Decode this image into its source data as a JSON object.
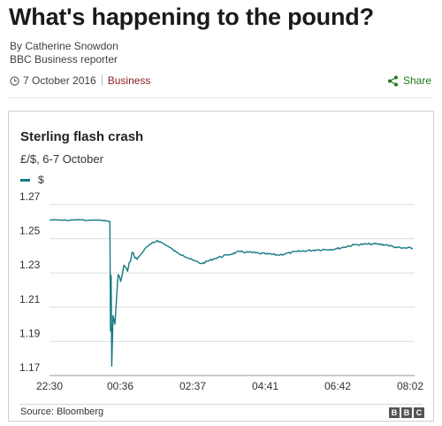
{
  "article": {
    "headline": "What's happening to the pound?",
    "author": "By Catherine Snowdon",
    "author_role": "BBC Business reporter",
    "date": "7 October 2016",
    "section": "Business",
    "share_label": "Share"
  },
  "chart_panel": {
    "title": "Sterling flash crash",
    "subtitle": "£/$, 6-7 October",
    "legend_label": "$",
    "source": "Source: Bloomberg",
    "logo_letters": [
      "B",
      "B",
      "C"
    ]
  },
  "colors": {
    "series": "#157a82",
    "section_tag": "#8a1f1f",
    "share": "#1a7a1a"
  },
  "icons": {
    "date": "clock-icon",
    "share": "share-icon"
  },
  "chart_data": {
    "type": "line",
    "title": "Sterling flash crash",
    "subtitle": "£/$, 6-7 October",
    "xlabel": "",
    "ylabel": "",
    "ylim": [
      1.17,
      1.27
    ],
    "yticks": [
      1.27,
      1.25,
      1.23,
      1.21,
      1.19,
      1.17
    ],
    "x_ticks": [
      "22:30",
      "00:36",
      "02:37",
      "04:41",
      "06:42",
      "08:02"
    ],
    "grid": true,
    "legend": "top-left",
    "series": [
      {
        "name": "$",
        "points": [
          [
            "22:30",
            1.261
          ],
          [
            "22:45",
            1.261
          ],
          [
            "23:00",
            1.2608
          ],
          [
            "23:15",
            1.2612
          ],
          [
            "23:30",
            1.2608
          ],
          [
            "23:45",
            1.261
          ],
          [
            "24:00",
            1.2605
          ],
          [
            "24:05",
            1.2602
          ],
          [
            "24:06",
            1.196
          ],
          [
            "24:07",
            1.2285
          ],
          [
            "24:08",
            1.1755
          ],
          [
            "24:10",
            1.205
          ],
          [
            "24:13",
            1.2
          ],
          [
            "24:18",
            1.229
          ],
          [
            "24:22",
            1.225
          ],
          [
            "24:27",
            1.2345
          ],
          [
            "24:33",
            1.231
          ],
          [
            "24:40",
            1.242
          ],
          [
            "24:48",
            1.238
          ],
          [
            "25:00",
            1.244
          ],
          [
            "25:10",
            1.247
          ],
          [
            "25:20",
            1.249
          ],
          [
            "25:35",
            1.246
          ],
          [
            "25:50",
            1.242
          ],
          [
            "26:00",
            1.2405
          ],
          [
            "26:15",
            1.2375
          ],
          [
            "26:30",
            1.2355
          ],
          [
            "26:50",
            1.2385
          ],
          [
            "27:10",
            1.2405
          ],
          [
            "27:30",
            1.2425
          ],
          [
            "28:00",
            1.2415
          ],
          [
            "28:30",
            1.2405
          ],
          [
            "29:00",
            1.2425
          ],
          [
            "29:30",
            1.2435
          ],
          [
            "30:00",
            1.244
          ],
          [
            "30:30",
            1.2465
          ],
          [
            "31:00",
            1.247
          ],
          [
            "31:20",
            1.2465
          ],
          [
            "31:35",
            1.245
          ],
          [
            "31:45",
            1.2445
          ],
          [
            "32:02",
            1.2445
          ]
        ]
      }
    ]
  }
}
